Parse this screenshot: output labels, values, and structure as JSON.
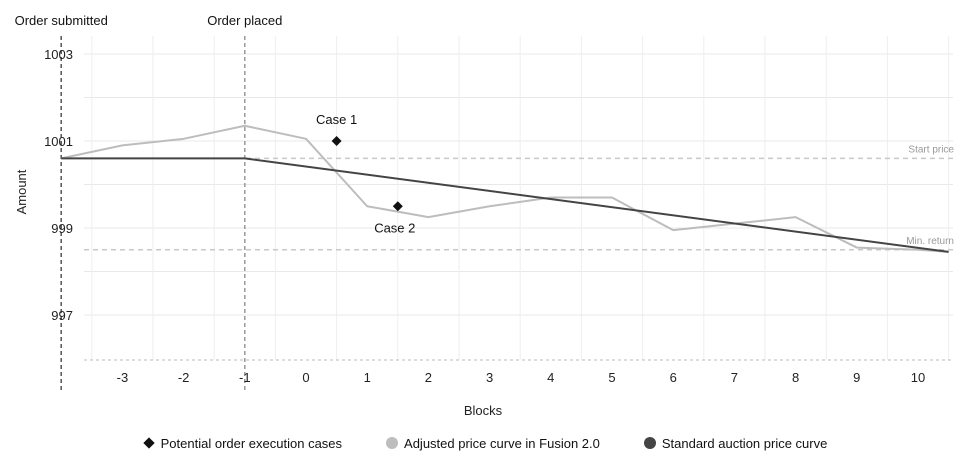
{
  "chart_data": {
    "type": "line",
    "xlabel": "Blocks",
    "ylabel": "Amount",
    "x_ticks": [
      -3,
      -2,
      -1,
      0,
      1,
      2,
      3,
      4,
      5,
      6,
      7,
      8,
      9,
      10
    ],
    "y_ticks": [
      997,
      999,
      1001,
      1003
    ],
    "grid": true,
    "series": [
      {
        "name": "Adjusted price curve in Fusion 2.0",
        "color": "#bdbdbd",
        "x": [
          -4,
          -3,
          -2,
          -1,
          0,
          1,
          2,
          3,
          4,
          5,
          6,
          7,
          8,
          9,
          10,
          10.5
        ],
        "y": [
          1000.6,
          1000.9,
          1001.05,
          1001.35,
          1001.05,
          999.5,
          999.25,
          999.5,
          999.7,
          999.7,
          998.95,
          999.1,
          999.25,
          998.55,
          998.5,
          998.45
        ]
      },
      {
        "name": "Standard auction price curve",
        "color": "#444444",
        "x": [
          -4,
          -1,
          10.5
        ],
        "y": [
          1000.6,
          1000.6,
          998.45
        ]
      }
    ],
    "markers": {
      "name": "Potential order execution cases",
      "color": "#111111",
      "points": [
        {
          "label": "Case 1",
          "x": 0.5,
          "y": 1001.0
        },
        {
          "label": "Case 2",
          "x": 1.5,
          "y": 999.5
        }
      ]
    },
    "reference_lines": [
      {
        "label": "Start price",
        "y": 1000.6
      },
      {
        "label": "Min. return",
        "y": 998.5
      }
    ],
    "vertical_markers": [
      {
        "label": "Order submitted",
        "x": -4
      },
      {
        "label": "Order placed",
        "x": -1
      }
    ],
    "legend_position": "bottom"
  }
}
